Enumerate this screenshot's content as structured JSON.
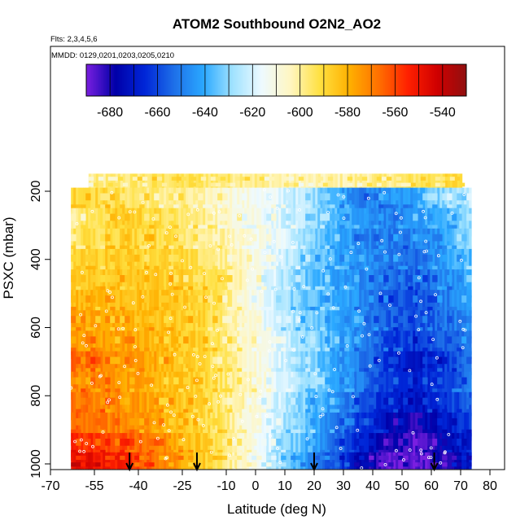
{
  "chart_data": {
    "type": "heatmap",
    "title": "ATOM2 Southbound O2N2_AO2",
    "subtitle_flights": "Flts: 2,3,4,5,6",
    "subtitle_dates": "MMDD: 0129,0201,0203,0205,0210",
    "xlabel": "Latitude (deg N)",
    "ylabel": "PSXC (mbar)",
    "xlim": [
      -70,
      85
    ],
    "ylim": [
      1000,
      100
    ],
    "x_ticks": [
      -70,
      -55,
      -40,
      -25,
      -10,
      0,
      10,
      20,
      30,
      40,
      50,
      60,
      70,
      80
    ],
    "x_tick_labels": [
      "-70",
      "-55",
      "-40",
      "-25",
      "-10",
      "0",
      "10",
      "20",
      "30",
      "40",
      "50",
      "60",
      "70",
      "80"
    ],
    "y_ticks": [
      200,
      400,
      600,
      800,
      1000
    ],
    "y_tick_labels": [
      "200",
      "400",
      "600",
      "800",
      "1000"
    ],
    "colorbar": {
      "range": [
        -690,
        -530
      ],
      "ticks": [
        -680,
        -660,
        -640,
        -620,
        -600,
        -580,
        -560,
        -540
      ],
      "tick_labels": [
        "-680",
        "-660",
        "-640",
        "-620",
        "-600",
        "-580",
        "-560",
        "-540"
      ],
      "colors": [
        "#7a1fe0",
        "#0000a8",
        "#0026d8",
        "#1e6fe8",
        "#2aa8ff",
        "#9fe2ff",
        "#eefaff",
        "#fff6c0",
        "#ffe040",
        "#ffb000",
        "#ff7000",
        "#ff2000",
        "#d00000",
        "#901010"
      ]
    },
    "profile_latitudes": [
      -43,
      -20,
      20,
      61
    ],
    "grid": false,
    "bands": [
      {
        "p": 170,
        "x0": -57,
        "x1": 70,
        "v": [
          -600,
          -598,
          -596,
          -594,
          -594,
          -595,
          -597,
          -600,
          -603,
          -604,
          -602,
          -600,
          -598,
          -595,
          -592,
          -590
        ]
      },
      {
        "p": 230,
        "x0": -63,
        "x1": 73,
        "v": [
          -588,
          -590,
          -594,
          -597,
          -600,
          -604,
          -608,
          -614,
          -620,
          -626,
          -640,
          -650,
          -645,
          -640,
          -630,
          -624
        ]
      },
      {
        "p": 290,
        "x0": -63,
        "x1": 73,
        "v": [
          -600,
          -592,
          -586,
          -590,
          -596,
          -600,
          -606,
          -612,
          -620,
          -628,
          -638,
          -646,
          -650,
          -642,
          -640,
          -628
        ]
      },
      {
        "p": 350,
        "x0": -63,
        "x1": 73,
        "v": [
          -594,
          -592,
          -588,
          -590,
          -594,
          -598,
          -604,
          -612,
          -620,
          -630,
          -640,
          -648,
          -650,
          -650,
          -642,
          -630
        ]
      },
      {
        "p": 410,
        "x0": -63,
        "x1": 73,
        "v": [
          -590,
          -588,
          -586,
          -588,
          -590,
          -596,
          -602,
          -612,
          -622,
          -632,
          -640,
          -646,
          -650,
          -652,
          -644,
          -636
        ]
      },
      {
        "p": 470,
        "x0": -63,
        "x1": 73,
        "v": [
          -586,
          -585,
          -584,
          -586,
          -588,
          -592,
          -600,
          -612,
          -626,
          -636,
          -642,
          -648,
          -654,
          -656,
          -648,
          -640
        ]
      },
      {
        "p": 530,
        "x0": -63,
        "x1": 73,
        "v": [
          -582,
          -582,
          -582,
          -584,
          -586,
          -590,
          -600,
          -614,
          -628,
          -636,
          -640,
          -648,
          -658,
          -660,
          -650,
          -644
        ]
      },
      {
        "p": 590,
        "x0": -63,
        "x1": 73,
        "v": [
          -578,
          -578,
          -580,
          -582,
          -586,
          -590,
          -600,
          -612,
          -626,
          -634,
          -640,
          -648,
          -656,
          -660,
          -652,
          -646
        ]
      },
      {
        "p": 650,
        "x0": -63,
        "x1": 73,
        "v": [
          -574,
          -576,
          -578,
          -580,
          -584,
          -590,
          -600,
          -610,
          -622,
          -630,
          -640,
          -650,
          -660,
          -664,
          -656,
          -650
        ]
      },
      {
        "p": 710,
        "x0": -63,
        "x1": 73,
        "v": [
          -566,
          -568,
          -574,
          -578,
          -584,
          -590,
          -598,
          -610,
          -622,
          -632,
          -642,
          -652,
          -664,
          -670,
          -662,
          -654
        ]
      },
      {
        "p": 770,
        "x0": -63,
        "x1": 73,
        "v": [
          -570,
          -572,
          -576,
          -580,
          -584,
          -590,
          -598,
          -608,
          -620,
          -630,
          -640,
          -652,
          -662,
          -668,
          -660,
          -652
        ]
      },
      {
        "p": 830,
        "x0": -63,
        "x1": 73,
        "v": [
          -568,
          -570,
          -574,
          -578,
          -584,
          -590,
          -598,
          -610,
          -624,
          -636,
          -646,
          -658,
          -668,
          -672,
          -664,
          -656
        ]
      },
      {
        "p": 890,
        "x0": -63,
        "x1": 73,
        "v": [
          -566,
          -568,
          -572,
          -576,
          -582,
          -590,
          -600,
          -612,
          -626,
          -638,
          -650,
          -664,
          -676,
          -680,
          -670,
          -660
        ]
      },
      {
        "p": 950,
        "x0": -63,
        "x1": 73,
        "v": [
          -556,
          -558,
          -562,
          -570,
          -578,
          -588,
          -600,
          -614,
          -628,
          -640,
          -654,
          -668,
          -680,
          -686,
          -676,
          -666
        ]
      },
      {
        "p": 990,
        "x0": -63,
        "x1": 73,
        "v": [
          -548,
          -550,
          -556,
          -566,
          -576,
          -588,
          -600,
          -616,
          -632,
          -646,
          -660,
          -676,
          -690,
          -688,
          -680,
          -670
        ]
      }
    ]
  }
}
